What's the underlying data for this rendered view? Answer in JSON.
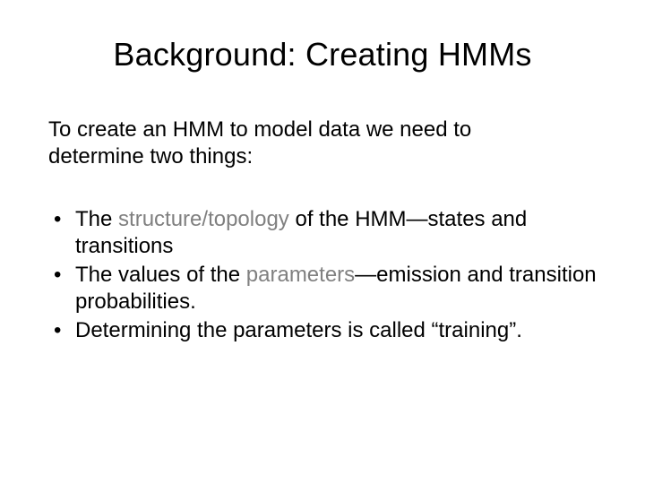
{
  "slide": {
    "title": "Background: Creating HMMs",
    "intro_line1": "To create an HMM to model data we need to",
    "intro_line2": "determine two things:",
    "bullet1_pre": "The ",
    "bullet1_hl": "structure/topology",
    "bullet1_post": " of the HMM—states and transitions",
    "bullet2_pre": "The values of the ",
    "bullet2_hl": "parameters",
    "bullet2_post": "—emission and transition probabilities.",
    "bullet3": "Determining the parameters is called “training”."
  },
  "styling": {
    "background_color": "#ffffff",
    "text_color": "#000000",
    "highlight_color": "#808080",
    "title_fontsize": 36,
    "body_fontsize": 24,
    "font_family": "Arial"
  }
}
